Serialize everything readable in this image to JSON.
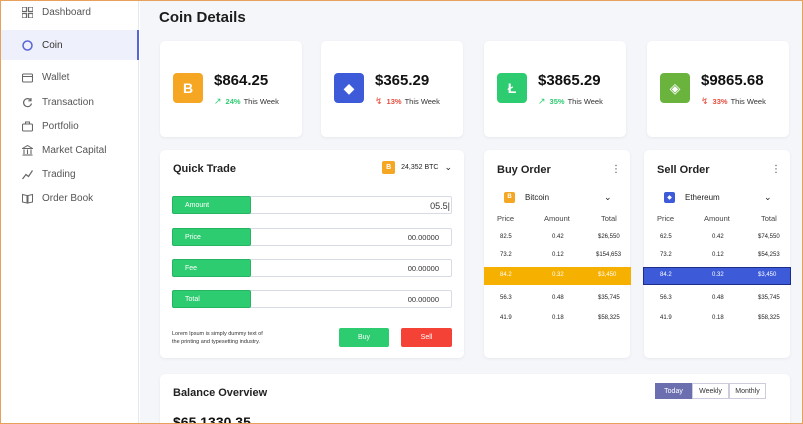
{
  "sidebar": {
    "items": [
      {
        "label": "Dashboard",
        "icon": "grid-icon"
      },
      {
        "label": "Coin",
        "icon": "coin-icon",
        "active": true
      },
      {
        "label": "Wallet",
        "icon": "wallet-icon"
      },
      {
        "label": "Transaction",
        "icon": "refresh-icon"
      },
      {
        "label": "Portfolio",
        "icon": "briefcase-icon"
      },
      {
        "label": "Market Capital",
        "icon": "bank-icon"
      },
      {
        "label": "Trading",
        "icon": "trend-icon"
      },
      {
        "label": "Order Book",
        "icon": "book-icon"
      }
    ]
  },
  "header": {
    "title": "Coin Details"
  },
  "coins": [
    {
      "symbol": "B",
      "color": "#f5a623",
      "price": "$864.25",
      "pct": "24%",
      "period": "This Week",
      "up": true,
      "arrow": "↗"
    },
    {
      "symbol": "◆",
      "color": "#3d5bd9",
      "price": "$365.29",
      "pct": "13%",
      "period": "This Week",
      "up": false,
      "arrow": "↯"
    },
    {
      "symbol": "Ł",
      "color": "#2ecc71",
      "price": "$3865.29",
      "pct": "35%",
      "period": "This Week",
      "up": true,
      "arrow": "↗"
    },
    {
      "symbol": "◈",
      "color": "#6ab43e",
      "price": "$9865.68",
      "pct": "33%",
      "period": "This Week",
      "up": false,
      "arrow": "↯"
    }
  ],
  "quick_trade": {
    "title": "Quick Trade",
    "balance": "24,352 BTC",
    "fields": [
      {
        "label": "Amount",
        "value": "05.5|"
      },
      {
        "label": "Price",
        "value": "00.00000"
      },
      {
        "label": "Fee",
        "value": "00.00000"
      },
      {
        "label": "Total",
        "value": "00.00000"
      }
    ],
    "note_line1": "Lorem Ipsum is simply dummy text of",
    "note_line2": "the printing and typesetting industry.",
    "buy_label": "Buy",
    "sell_label": "Sell"
  },
  "buy_order": {
    "title": "Buy Order",
    "coin": "Bitcoin",
    "headers": [
      "Price",
      "Amount",
      "Total"
    ],
    "rows": [
      [
        "82.5",
        "0.42",
        "$26,550"
      ],
      [
        "73.2",
        "0.12",
        "$154,653"
      ],
      [
        "84.2",
        "0.32",
        "$3,450"
      ],
      [
        "56.3",
        "0.48",
        "$35,745"
      ],
      [
        "41.9",
        "0.18",
        "$58,325"
      ]
    ],
    "highlight_index": 2,
    "highlight_color": "#f5b000"
  },
  "sell_order": {
    "title": "Sell Order",
    "coin": "Ethereum",
    "headers": [
      "Price",
      "Amount",
      "Total"
    ],
    "rows": [
      [
        "62.5",
        "0.42",
        "$74,550"
      ],
      [
        "73.2",
        "0.12",
        "$54,253"
      ],
      [
        "84.2",
        "0.32",
        "$3,450"
      ],
      [
        "56.3",
        "0.48",
        "$35,745"
      ],
      [
        "41.9",
        "0.18",
        "$58,325"
      ]
    ],
    "highlight_index": 2,
    "highlight_color": "#3d5bd9"
  },
  "balance": {
    "title": "Balance Overview",
    "amount": "$65,1330.35",
    "tabs": [
      "Today",
      "Weekly",
      "Monthly"
    ],
    "active_tab": "Today"
  }
}
